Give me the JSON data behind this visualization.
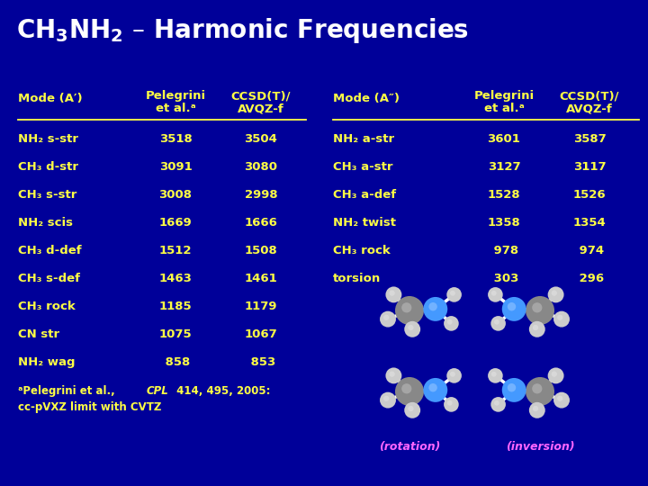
{
  "background_color": "#000099",
  "title_parts": [
    "CH",
    "3",
    "NH",
    "2",
    " – Harmonic Frequencies"
  ],
  "title_color": "#ffffff",
  "title_fontsize": 20,
  "header_color": "#ffff44",
  "data_color": "#ffff44",
  "footnote_color": "#ffff44",
  "mol_label_color": "#ff66ff",
  "mode_a_prime_header": "Mode (A′)",
  "mode_a_dbl_prime_header": "Mode (A″)",
  "col_header1a": "Pelegrini",
  "col_header1b": "et al.ᵃ",
  "col_header2a": "CCSD(T)/",
  "col_header2b": "AVQZ-f",
  "rows_prime": [
    [
      "NH₂ s-str",
      "3518",
      "3504"
    ],
    [
      "CH₃ d-str",
      "3091",
      "3080"
    ],
    [
      "CH₃ s-str",
      "3008",
      "2998"
    ],
    [
      "NH₂ scis",
      "1669",
      "1666"
    ],
    [
      "CH₃ d-def",
      "1512",
      "1508"
    ],
    [
      "CH₃ s-def",
      "1463",
      "1461"
    ],
    [
      "CH₃ rock",
      "1185",
      "1179"
    ],
    [
      "CN str",
      "1075",
      "1067"
    ],
    [
      "NH₂ wag",
      " 858",
      " 853"
    ]
  ],
  "rows_dbl_prime": [
    [
      "NH₂ a-str",
      "3601",
      "3587"
    ],
    [
      "CH₃ a-str",
      "3127",
      "3117"
    ],
    [
      "CH₃ a-def",
      "1528",
      "1526"
    ],
    [
      "NH₂ twist",
      "1358",
      "1354"
    ],
    [
      "CH₃ rock",
      " 978",
      " 974"
    ],
    [
      "torsion",
      " 303",
      " 296"
    ]
  ],
  "rotation_label": "(rotation)",
  "inversion_label": "(inversion)"
}
